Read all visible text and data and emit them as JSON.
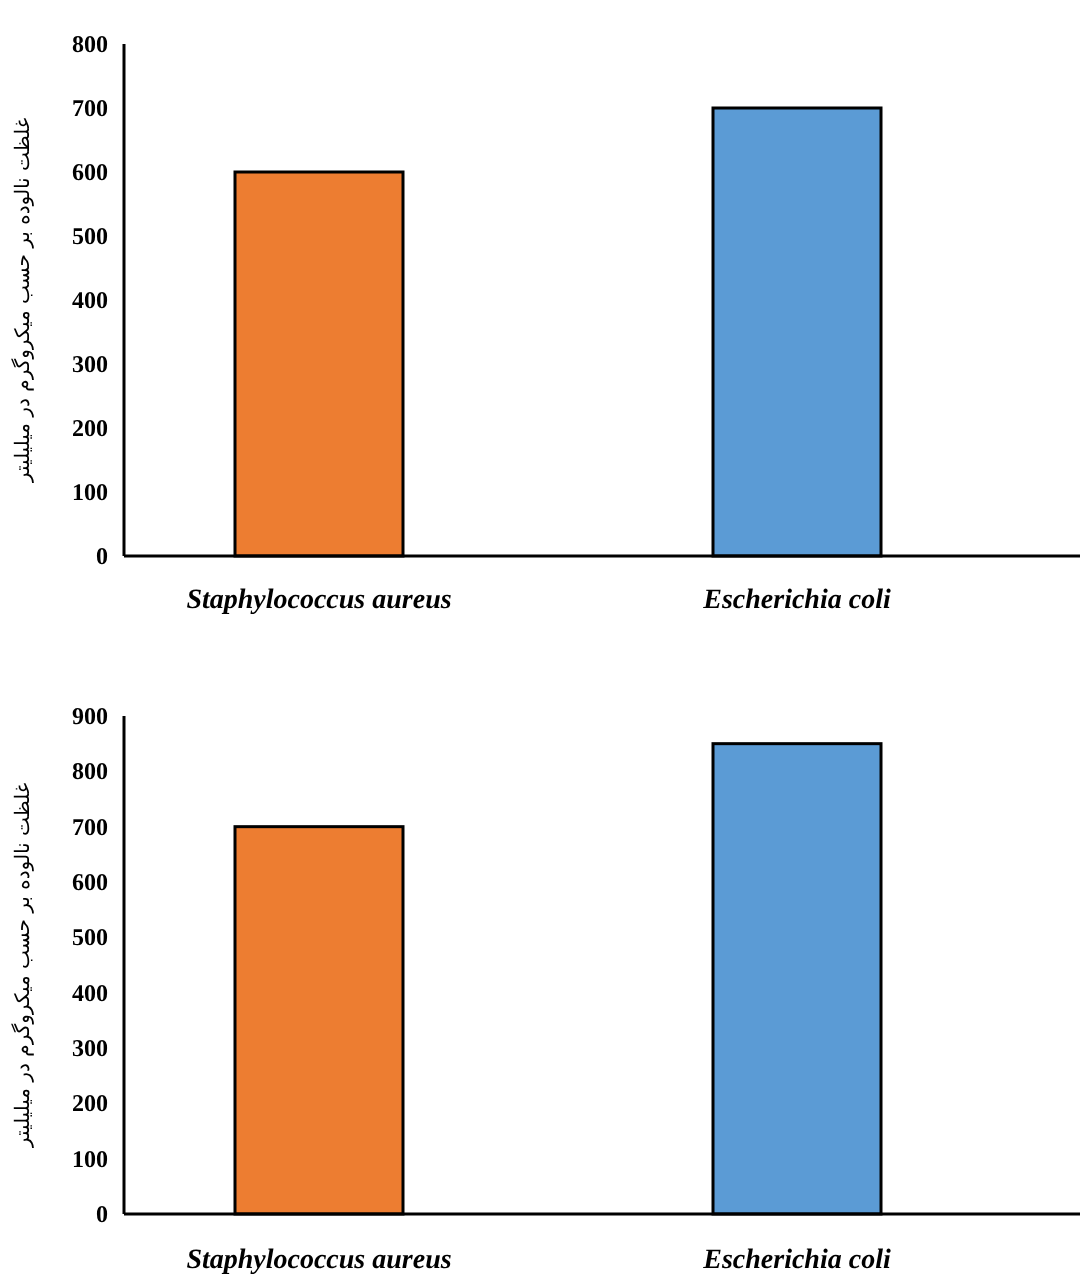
{
  "chart_data": [
    {
      "type": "bar",
      "ylabel": "غلظت نالوده بر حسب میکروگرم در میلیلیتر",
      "categories": [
        "Staphylococcus aureus",
        "Escherichia coli"
      ],
      "colors": [
        "#ed7d31",
        "#5b9bd5"
      ],
      "values": [
        600,
        700
      ],
      "ylim": [
        0,
        800
      ],
      "yticks": [
        0,
        100,
        200,
        300,
        400,
        500,
        600,
        700,
        800
      ]
    },
    {
      "type": "bar",
      "ylabel": "غلظت نالوده بر حسب میکروگرم در میلیلیتر",
      "categories": [
        "Staphylococcus aureus",
        "Escherichia coli"
      ],
      "colors": [
        "#ed7d31",
        "#5b9bd5"
      ],
      "values": [
        700,
        850
      ],
      "ylim": [
        0,
        900
      ],
      "yticks": [
        0,
        100,
        200,
        300,
        400,
        500,
        600,
        700,
        800,
        900
      ]
    }
  ]
}
